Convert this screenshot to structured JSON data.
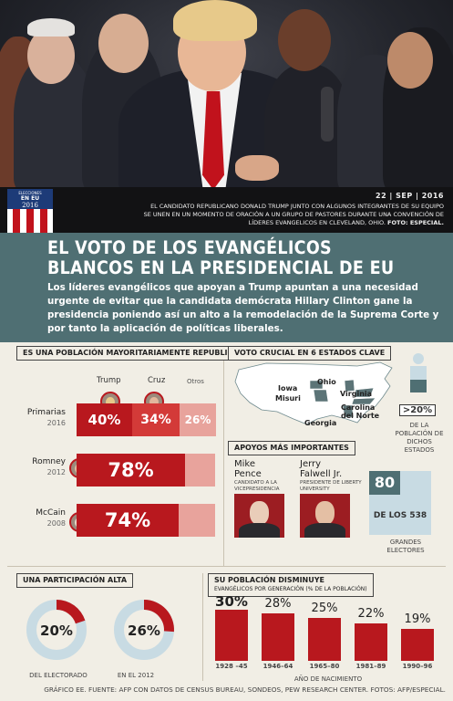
{
  "photo": {
    "date": "22 | SEP | 2016",
    "caption": "El candidato republicano Donald Trump junto con algunos integrantes de su equipo se unen en un momento de oración a un grupo de pastores durante una convención de líderes evangelicos en Cleveland, Ohio.",
    "credit": "FOTO: ESPECIAL."
  },
  "badge": {
    "top": "ELECCIONES",
    "mid": "EN EU",
    "year": "2016"
  },
  "header": {
    "title_line1": "EL VOTO DE LOS EVANGÉLICOS",
    "title_line2": "BLANCOS EN LA PRESIDENCIAL DE EU",
    "subtitle": "Los líderes evangélicos que apoyan a Trump apuntan a una necesidad urgente de evitar que la candidata demócrata Hillary Clinton gane la presidencia poniendo así un alto a la remodelación de la Suprema Corte y por tanto la aplicación de políticas liberales."
  },
  "colors": {
    "red": "#b8181e",
    "red_mid": "#d33a38",
    "pink": "#e8a39c",
    "teal": "#4f6f73",
    "lightblue": "#c8dbe3"
  },
  "icons": [
    "usa-badge-icon",
    "trump-avatar",
    "cruz-avatar",
    "romney-avatar",
    "mccain-avatar",
    "person-icon",
    "us-map"
  ],
  "sections": {
    "population": "ES UNA POBLACIÓN MAYORITARIAMENTE REPUBLICANA",
    "key_states": "VOTO CRUCIAL EN 6 ESTADOS CLAVE",
    "supporters": "APOYOS MÁS IMPORTANTES",
    "participation": "UNA PARTICIPACIÓN ALTA",
    "decline_title": "SU POBLACIÓN DISMINUYE",
    "decline_sub": "EVANGÉLICOS POR GENERACIÓN (% DE LA POBLACIÓN)"
  },
  "map": {
    "states": [
      "Iowa",
      "Misuri",
      "Ohio",
      "Virginia",
      "Carolina del Norte",
      "Georgia"
    ],
    "share": ">20%",
    "share_note": "DE LA POBLACIÓN DE DICHOS ESTADOS"
  },
  "supporters": [
    {
      "name_first": "Mike",
      "name_last": "Pence",
      "role": "CANDIDATO A LA VICEPRESIDENCIA"
    },
    {
      "name_first": "Jerry",
      "name_last": "Falwell Jr.",
      "role": "PRESIDENTE DE LIBERTY UNIVERSITY"
    }
  ],
  "electors": {
    "value": "80",
    "of": "DE LOS 538",
    "note": "GRANDES ELECTORES"
  },
  "footer": "GRÁFICO EE. FUENTE: AFP CON DATOS DE CENSUS BUREAU, SONDEOS, PEW RESEARCH CENTER. FOTOS: AFP/ESPECIAL.",
  "chart_data": [
    {
      "type": "bar",
      "orientation": "horizontal",
      "title": "ES UNA POBLACIÓN MAYORITARIAMENTE REPUBLICANA",
      "series_names": [
        "Trump",
        "Cruz",
        "Otros"
      ],
      "rows": [
        {
          "label": "Primarias",
          "sublabel": "2016",
          "values": [
            40,
            34,
            26
          ],
          "labels": [
            "40%",
            "34%",
            "26%"
          ]
        },
        {
          "label": "Romney",
          "sublabel": "2012",
          "values": [
            78,
            22
          ],
          "labels": [
            "78%",
            ""
          ]
        },
        {
          "label": "McCain",
          "sublabel": "2008",
          "values": [
            74,
            26
          ],
          "labels": [
            "74%",
            ""
          ]
        }
      ],
      "xlim": [
        0,
        100
      ]
    },
    {
      "type": "pie",
      "title": "UNA PARTICIPACIÓN ALTA",
      "items": [
        {
          "value": 20,
          "label": "20%",
          "caption": "DEL ELECTORADO"
        },
        {
          "value": 26,
          "label": "26%",
          "caption": "EN EL 2012"
        }
      ]
    },
    {
      "type": "bar",
      "title": "SU POBLACIÓN DISMINUYE",
      "subtitle": "EVANGÉLICOS POR GENERACIÓN (% DE LA POBLACIÓN)",
      "categories": [
        "1928 –45",
        "1946–64",
        "1965–80",
        "1981–89",
        "1990–96"
      ],
      "values": [
        30,
        28,
        25,
        22,
        19
      ],
      "value_labels": [
        "30%",
        "28%",
        "25%",
        "22%",
        "19%"
      ],
      "xlabel": "AÑO DE NACIMIENTO",
      "ylim": [
        0,
        30
      ]
    }
  ]
}
